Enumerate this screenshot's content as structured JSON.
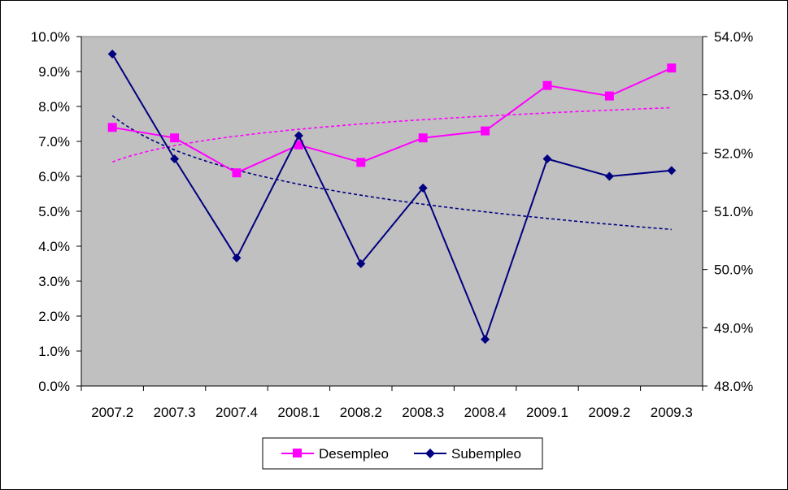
{
  "chart_data": {
    "type": "line",
    "title": "",
    "xlabel": "",
    "ylabel": "",
    "categories": [
      "2007.2",
      "2007.3",
      "2007.4",
      "2008.1",
      "2008.2",
      "2008.3",
      "2008.4",
      "2009.1",
      "2009.2",
      "2009.3"
    ],
    "y_left": {
      "ylim": [
        0.0,
        10.0
      ],
      "tick_values": [
        0,
        1,
        2,
        3,
        4,
        5,
        6,
        7,
        8,
        9,
        10
      ],
      "tick_labels": [
        "0.0%",
        "1.0%",
        "2.0%",
        "3.0%",
        "4.0%",
        "5.0%",
        "6.0%",
        "7.0%",
        "8.0%",
        "9.0%",
        "10.0%"
      ]
    },
    "y_right": {
      "ylim": [
        48.0,
        54.0
      ],
      "tick_values": [
        48,
        49,
        50,
        51,
        52,
        53,
        54
      ],
      "tick_labels": [
        "48.0%",
        "49.0%",
        "50.0%",
        "51.0%",
        "52.0%",
        "53.0%",
        "54.0%"
      ]
    },
    "series": [
      {
        "name": "Desempleo",
        "axis": "left",
        "color": "#ff00ff",
        "marker": "square",
        "values": [
          7.4,
          7.1,
          6.1,
          6.9,
          6.4,
          7.1,
          7.3,
          8.6,
          8.3,
          9.1
        ],
        "trendline": {
          "type": "logarithmic",
          "style": "dashed"
        }
      },
      {
        "name": "Subempleo",
        "axis": "right",
        "color": "#000080",
        "marker": "diamond",
        "values": [
          53.7,
          51.9,
          50.2,
          52.3,
          50.1,
          51.4,
          48.8,
          51.9,
          51.6,
          51.7
        ],
        "trendline": {
          "type": "logarithmic",
          "style": "dashed"
        }
      }
    ],
    "plot_background": "#c0c0c0",
    "grid": false,
    "legend": {
      "position": "bottom",
      "entries": [
        "Desempleo",
        "Subempleo"
      ]
    }
  }
}
